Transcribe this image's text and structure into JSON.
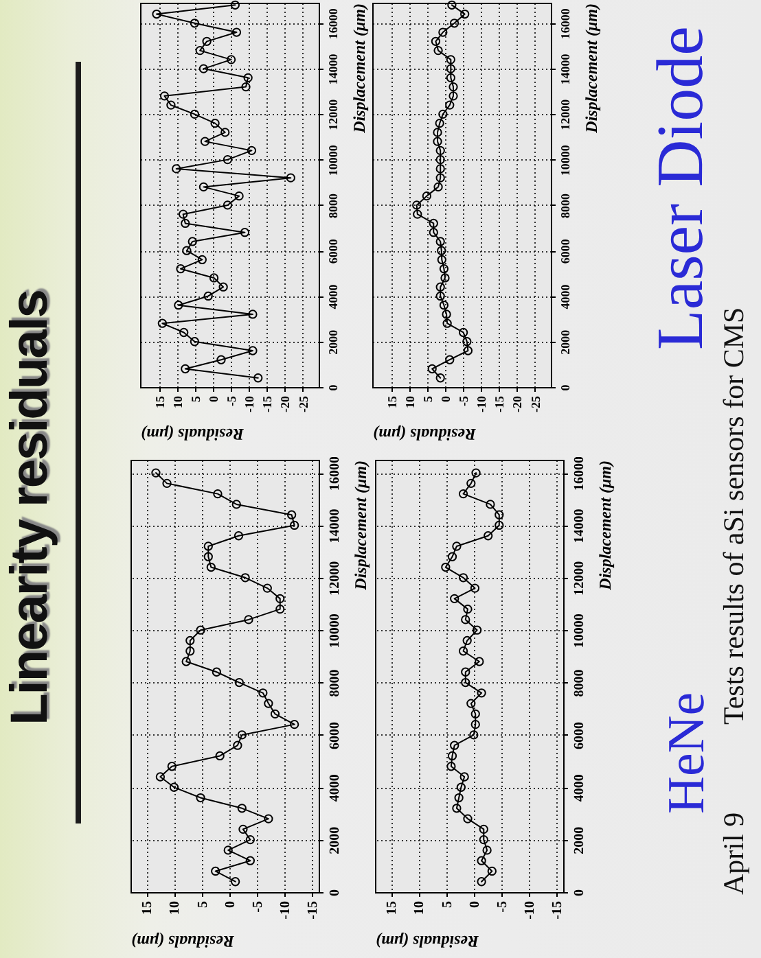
{
  "chart_data": [
    {
      "type": "other",
      "title": "Linearity residuals",
      "annotations": [
        "HeNe",
        "Laser Diode",
        "Tests results of aSi sensors for CMS",
        "April 9"
      ]
    },
    {
      "type": "line",
      "color": "#000000",
      "marker": "circle",
      "grid": true,
      "xlabel": "Residuals (μm)",
      "ylabel": "Displacement (μm)",
      "xlim": [
        17.9,
        -16.2
      ],
      "ylim": [
        0,
        16500
      ],
      "xticks": [
        15,
        10,
        5,
        0,
        -5,
        -10,
        -15
      ],
      "yticks": [
        0,
        2000,
        4000,
        6000,
        8000,
        10000,
        12000,
        14000,
        16000
      ],
      "x": [
        -1.1,
        2.5,
        -3.8,
        0.2,
        -3.8,
        -2.5,
        -7.1,
        -2.3,
        5.2,
        10,
        12.5,
        10.4,
        1.7,
        -1.5,
        -2.3,
        -11.8,
        -8.3,
        -7.1,
        -6.1,
        -1.8,
        2.3,
        7.8,
        7.1,
        7.1,
        5.2,
        -3.5,
        -9.2,
        -9.2,
        -6.9,
        -2.9,
        3.3,
        3.8,
        3.8,
        -1.7,
        -11.8,
        -11.3,
        -1.3,
        2.1,
        11.3,
        13.3
      ],
      "values": [
        400,
        800,
        1200,
        1600,
        2000,
        2400,
        2800,
        3200,
        3600,
        4000,
        4400,
        4800,
        5200,
        5600,
        6000,
        6400,
        6800,
        7200,
        7600,
        8000,
        8400,
        8800,
        9200,
        9600,
        10000,
        10400,
        10800,
        11200,
        11600,
        12000,
        12400,
        12800,
        13200,
        13600,
        14000,
        14400,
        14800,
        15200,
        15600,
        16000
      ]
    },
    {
      "type": "line",
      "color": "#000000",
      "marker": "circle",
      "grid": true,
      "xlabel": "Residuals (μm)",
      "ylabel": "Displacement (μm)",
      "xlim": [
        17.9,
        -16.2
      ],
      "ylim": [
        0,
        16500
      ],
      "xticks": [
        15,
        10,
        5,
        0,
        -5,
        -10,
        -15
      ],
      "yticks": [
        0,
        2000,
        4000,
        6000,
        8000,
        10000,
        12000,
        14000,
        16000
      ],
      "x": [
        -1.4,
        -3.3,
        -1.4,
        -2.4,
        -1.8,
        -1.8,
        1.1,
        3.1,
        2.7,
        2.3,
        1.7,
        4.1,
        3.9,
        3.5,
        0,
        -0.3,
        -0.3,
        0.5,
        -1.4,
        1.5,
        1.5,
        -1.0,
        1.9,
        1.2,
        -0.6,
        1.5,
        1.1,
        3.5,
        -0.2,
        1.9,
        5.1,
        3.9,
        3.1,
        -2.6,
        -4.6,
        -4.6,
        -3.0,
        1.9,
        0.5,
        -0.4
      ],
      "values": [
        400,
        800,
        1200,
        1600,
        2000,
        2400,
        2800,
        3200,
        3600,
        4000,
        4400,
        4800,
        5200,
        5600,
        6000,
        6400,
        6800,
        7200,
        7600,
        8000,
        8400,
        8800,
        9200,
        9600,
        10000,
        10400,
        10800,
        11200,
        11600,
        12000,
        12400,
        12800,
        13200,
        13600,
        14000,
        14400,
        14800,
        15200,
        15600,
        16000
      ]
    },
    {
      "type": "line",
      "color": "#000000",
      "marker": "circle",
      "grid": true,
      "xlabel": "Residuals (μm)",
      "ylabel": "Displacement (μm)",
      "xlim": [
        20.3,
        -29.5
      ],
      "ylim": [
        0,
        16900
      ],
      "xticks": [
        15,
        10,
        5,
        0,
        -5,
        -10,
        -15,
        -20,
        -25
      ],
      "yticks": [
        0,
        2000,
        4000,
        6000,
        8000,
        10000,
        12000,
        14000,
        16000
      ],
      "x": [
        -12.6,
        7.7,
        -2.3,
        -11.1,
        5.1,
        8.1,
        14.1,
        -11.1,
        9.6,
        1.3,
        -2.9,
        -0.3,
        9.0,
        3.0,
        7.3,
        5.7,
        -8.9,
        7.7,
        8.3,
        -4.1,
        -7.3,
        2.6,
        -21.7,
        10.2,
        -4.1,
        -10.8,
        2.2,
        -3.4,
        -0.6,
        5.1,
        11.7,
        13.5,
        -9.2,
        -9.8,
        2.6,
        -5.1,
        3.6,
        1.7,
        -6.6,
        5.1,
        15.7,
        -6.2
      ],
      "values": [
        400,
        800,
        1200,
        1600,
        2000,
        2400,
        2800,
        3200,
        3600,
        4000,
        4400,
        4800,
        5200,
        5600,
        6000,
        6400,
        6800,
        7200,
        7600,
        8000,
        8400,
        8800,
        9200,
        9600,
        10000,
        10400,
        10800,
        11200,
        11600,
        12000,
        12400,
        12800,
        13200,
        13600,
        14000,
        14400,
        14800,
        15200,
        15600,
        16000,
        16400,
        16800
      ]
    },
    {
      "type": "line",
      "color": "#000000",
      "marker": "circle",
      "grid": true,
      "xlabel": "Residuals (μm)",
      "ylabel": "Displacement (μm)",
      "xlim": [
        20.3,
        -29.5
      ],
      "ylim": [
        0,
        16900
      ],
      "xticks": [
        15,
        10,
        5,
        0,
        -5,
        -10,
        -15,
        -20,
        -25
      ],
      "yticks": [
        0,
        2000,
        4000,
        6000,
        8000,
        10000,
        12000,
        14000,
        16000
      ],
      "x": [
        1.3,
        3.6,
        -1.3,
        -6.4,
        -6.1,
        -5.1,
        -0.6,
        -0.4,
        0.3,
        1.3,
        1.3,
        0.0,
        0.3,
        0.9,
        1.0,
        1.3,
        3.2,
        3.2,
        7.7,
        7.9,
        5.1,
        1.9,
        1.3,
        1.3,
        1.3,
        1.3,
        2.1,
        2.1,
        1.5,
        0.6,
        -1.3,
        -2.3,
        -2.3,
        -1.6,
        -1.6,
        -1.6,
        1.9,
        2.6,
        0.6,
        -2.6,
        -5.5,
        -1.9
      ],
      "values": [
        400,
        800,
        1200,
        1600,
        2000,
        2400,
        2800,
        3200,
        3600,
        4000,
        4400,
        4800,
        5200,
        5600,
        6000,
        6400,
        6800,
        7200,
        7600,
        8000,
        8400,
        8800,
        9200,
        9600,
        10000,
        10400,
        10800,
        11200,
        11600,
        12000,
        12400,
        12800,
        13200,
        13600,
        14000,
        14400,
        14800,
        15200,
        15600,
        16000,
        16400,
        16800
      ]
    }
  ]
}
